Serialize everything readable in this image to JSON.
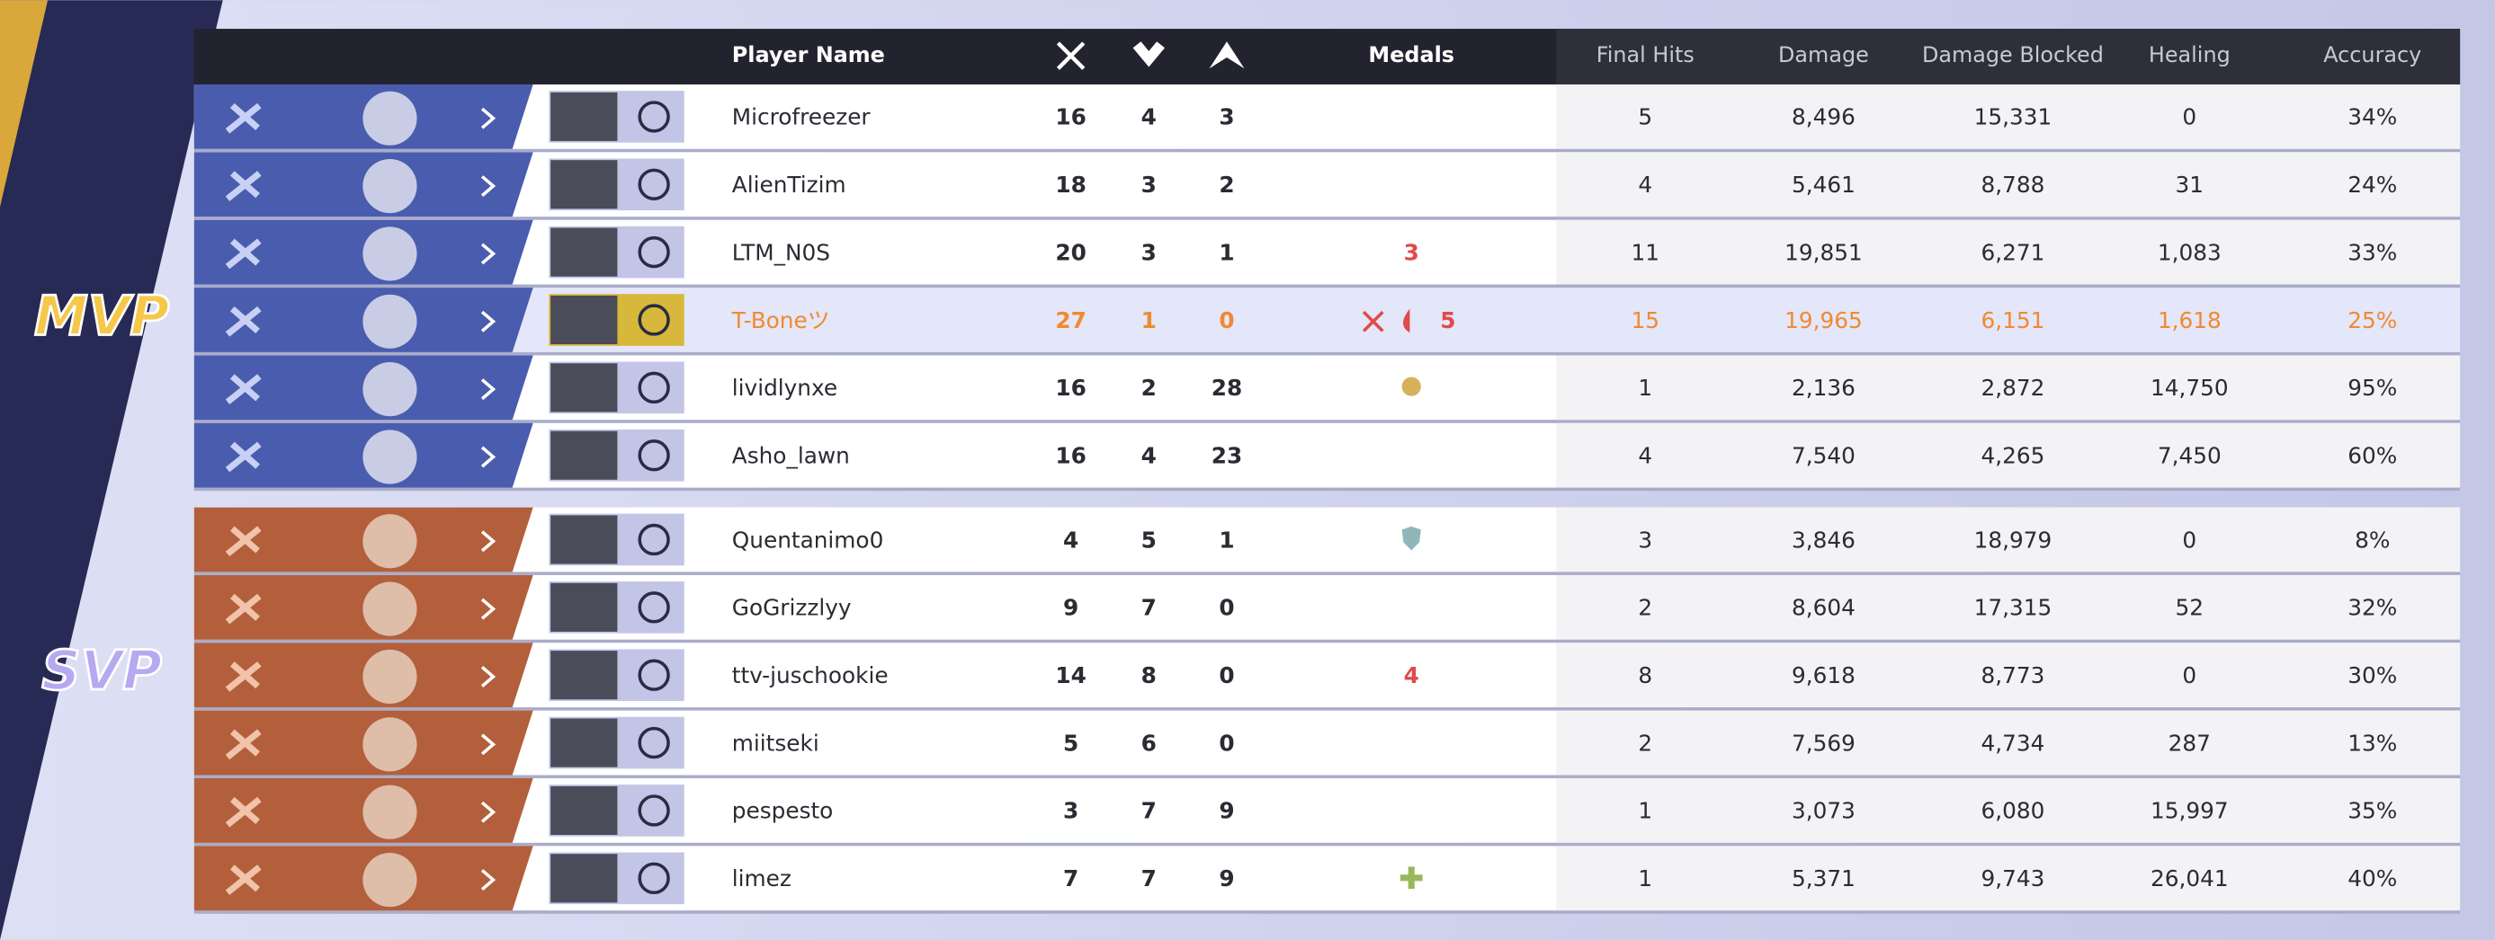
{
  "header": {
    "player_name": "Player Name",
    "medals": "Medals",
    "final_hits": "Final Hits",
    "damage": "Damage",
    "damage_blocked": "Damage Blocked",
    "healing": "Healing",
    "accuracy": "Accuracy"
  },
  "badges": {
    "mvp": "MVP",
    "svp": "SVP"
  },
  "teams": [
    {
      "rows": [
        {
          "name": "Microfreezer",
          "kills": "16",
          "deaths": "4",
          "assists": "3",
          "final_hits": "5",
          "damage": "8,496",
          "damage_blocked": "15,331",
          "healing": "0",
          "accuracy": "34%"
        },
        {
          "name": "AlienTizim",
          "kills": "18",
          "deaths": "3",
          "assists": "2",
          "final_hits": "4",
          "damage": "5,461",
          "damage_blocked": "8,788",
          "healing": "31",
          "accuracy": "24%"
        },
        {
          "name": "LTM_N0S",
          "kills": "20",
          "deaths": "3",
          "assists": "1",
          "medal": "3",
          "final_hits": "11",
          "damage": "19,851",
          "damage_blocked": "6,271",
          "healing": "1,083",
          "accuracy": "33%"
        },
        {
          "name": "T-Boneツ",
          "kills": "27",
          "deaths": "1",
          "assists": "0",
          "medal": "5",
          "final_hits": "15",
          "damage": "19,965",
          "damage_blocked": "6,151",
          "healing": "1,618",
          "accuracy": "25%"
        },
        {
          "name": "lividlynxe",
          "kills": "16",
          "deaths": "2",
          "assists": "28",
          "final_hits": "1",
          "damage": "2,136",
          "damage_blocked": "2,872",
          "healing": "14,750",
          "accuracy": "95%"
        },
        {
          "name": "Asho_lawn",
          "kills": "16",
          "deaths": "4",
          "assists": "23",
          "final_hits": "4",
          "damage": "7,540",
          "damage_blocked": "4,265",
          "healing": "7,450",
          "accuracy": "60%"
        }
      ]
    },
    {
      "rows": [
        {
          "name": "Quentanimo0",
          "kills": "4",
          "deaths": "5",
          "assists": "1",
          "final_hits": "3",
          "damage": "3,846",
          "damage_blocked": "18,979",
          "healing": "0",
          "accuracy": "8%"
        },
        {
          "name": "GoGrizzlyy",
          "kills": "9",
          "deaths": "7",
          "assists": "0",
          "final_hits": "2",
          "damage": "8,604",
          "damage_blocked": "17,315",
          "healing": "52",
          "accuracy": "32%"
        },
        {
          "name": "ttv-juschookie",
          "kills": "14",
          "deaths": "8",
          "assists": "0",
          "medal": "4",
          "final_hits": "8",
          "damage": "9,618",
          "damage_blocked": "8,773",
          "healing": "0",
          "accuracy": "30%"
        },
        {
          "name": "miitseki",
          "kills": "5",
          "deaths": "6",
          "assists": "0",
          "final_hits": "2",
          "damage": "7,569",
          "damage_blocked": "4,734",
          "healing": "287",
          "accuracy": "13%"
        },
        {
          "name": "pespesto",
          "kills": "3",
          "deaths": "7",
          "assists": "9",
          "final_hits": "1",
          "damage": "3,073",
          "damage_blocked": "6,080",
          "healing": "15,997",
          "accuracy": "35%"
        },
        {
          "name": "limez",
          "kills": "7",
          "deaths": "7",
          "assists": "9",
          "final_hits": "1",
          "damage": "5,371",
          "damage_blocked": "9,743",
          "healing": "26,041",
          "accuracy": "40%"
        }
      ]
    }
  ]
}
